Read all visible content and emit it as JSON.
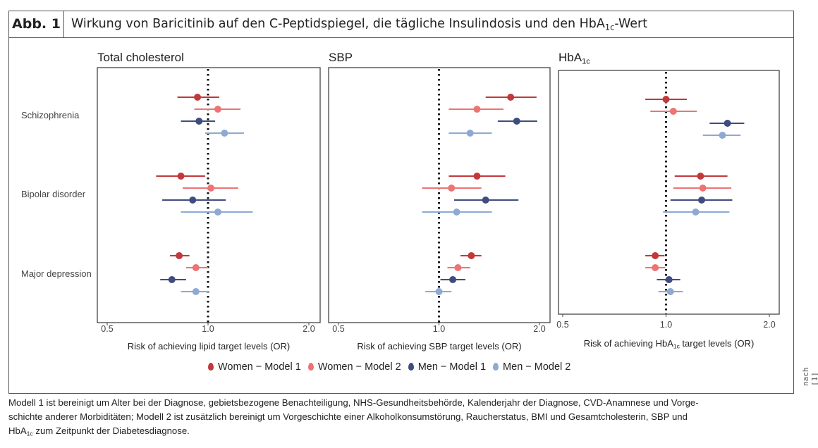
{
  "header": {
    "label": "Abb. 1",
    "title_pre": "Wirkung von Baricitinib auf den C-Peptidspiegel, die tägliche Insulindosis und den HbA",
    "title_sub": "1c",
    "title_post": "-Wert"
  },
  "row_labels": [
    "Schizophrenia",
    "Bipolar disorder",
    "Major depression"
  ],
  "legend": [
    {
      "label": "Women − Model 1",
      "color": "#c0393b"
    },
    {
      "label": "Women − Model 2",
      "color": "#ec7474"
    },
    {
      "label": "Men − Model 1",
      "color": "#3f4c7f"
    },
    {
      "label": "Men − Model 2",
      "color": "#8ea9d3"
    }
  ],
  "source_note": "nach [1]",
  "caption": {
    "line1": "Modell 1 ist bereinigt um Alter bei der Diagnose, gebietsbezogene Benachteiligung, NHS-Gesundheitsbehörde, Kalenderjahr der Diagnose, CVD-Anamnese und Vorge-",
    "line2": "schichte anderer Morbiditäten; Modell 2 ist zusätzlich bereinigt um Vorgeschichte einer Alkoholkonsumstörung, Raucherstatus, BMI und Gesamtcholesterin, SBP und",
    "line3_pre": "HbA",
    "line3_sub": "1c",
    "line3_post": " zum Zeitpunkt der Diabetesdiagnose."
  },
  "chart_data": [
    {
      "type": "forest",
      "title": "Total cholesterol",
      "title_sub": "",
      "xlabel_pre": "Risk of achieving lipid target levels (OR)",
      "xlabel_sub": "",
      "xlabel_post": "",
      "xscale": "log",
      "xlim": [
        0.5,
        2.0
      ],
      "xticks": [
        "0.5",
        "1.0",
        "2.0"
      ],
      "reference": 1.0,
      "groups": [
        {
          "name": "Schizophrenia",
          "series": [
            [
              0.93,
              0.81,
              1.08
            ],
            [
              1.07,
              0.91,
              1.25
            ],
            [
              0.94,
              0.83,
              1.05
            ],
            [
              1.12,
              0.98,
              1.28
            ]
          ]
        },
        {
          "name": "Bipolar disorder",
          "series": [
            [
              0.83,
              0.7,
              0.98
            ],
            [
              1.02,
              0.84,
              1.23
            ],
            [
              0.9,
              0.73,
              1.13
            ],
            [
              1.07,
              0.83,
              1.36
            ]
          ]
        },
        {
          "name": "Major depression",
          "series": [
            [
              0.82,
              0.77,
              0.88
            ],
            [
              0.92,
              0.86,
              1.0
            ],
            [
              0.78,
              0.72,
              0.86
            ],
            [
              0.92,
              0.83,
              1.01
            ]
          ]
        }
      ]
    },
    {
      "type": "forest",
      "title": "SBP",
      "title_sub": "",
      "xlabel_pre": "Risk of achieving SBP target levels (OR)",
      "xlabel_sub": "",
      "xlabel_post": "",
      "xscale": "log",
      "xlim": [
        0.5,
        2.0
      ],
      "xticks": [
        "0.5",
        "1.0",
        "2.0"
      ],
      "reference": 1.0,
      "groups": [
        {
          "name": "Schizophrenia",
          "series": [
            [
              1.64,
              1.38,
              1.96
            ],
            [
              1.3,
              1.07,
              1.56
            ],
            [
              1.71,
              1.5,
              1.97
            ],
            [
              1.24,
              1.07,
              1.44
            ]
          ]
        },
        {
          "name": "Bipolar disorder",
          "series": [
            [
              1.3,
              1.07,
              1.58
            ],
            [
              1.09,
              0.89,
              1.34
            ],
            [
              1.38,
              1.11,
              1.73
            ],
            [
              1.13,
              0.89,
              1.44
            ]
          ]
        },
        {
          "name": "Major depression",
          "series": [
            [
              1.25,
              1.16,
              1.34
            ],
            [
              1.14,
              1.06,
              1.24
            ],
            [
              1.1,
              1.01,
              1.2
            ],
            [
              1.0,
              0.91,
              1.09
            ]
          ]
        }
      ]
    },
    {
      "type": "forest",
      "title": "HbA",
      "title_sub": "1c",
      "xlabel_pre": "Risk of achieving HbA",
      "xlabel_sub": "1c",
      "xlabel_post": " target levels (OR)",
      "xscale": "log",
      "xlim": [
        0.5,
        2.0
      ],
      "xticks": [
        "0.5",
        "1.0",
        "2.0"
      ],
      "reference": 1.0,
      "groups": [
        {
          "name": "Schizophrenia",
          "series": [
            [
              1.0,
              0.87,
              1.15
            ],
            [
              1.05,
              0.9,
              1.23
            ],
            [
              1.51,
              1.34,
              1.69
            ],
            [
              1.46,
              1.28,
              1.65
            ]
          ]
        },
        {
          "name": "Bipolar disorder",
          "series": [
            [
              1.26,
              1.06,
              1.51
            ],
            [
              1.28,
              1.05,
              1.55
            ],
            [
              1.27,
              1.03,
              1.56
            ],
            [
              1.22,
              0.98,
              1.53
            ]
          ]
        },
        {
          "name": "Major depression",
          "series": [
            [
              0.93,
              0.87,
              0.99
            ],
            [
              0.93,
              0.87,
              0.995
            ],
            [
              1.02,
              0.94,
              1.1
            ],
            [
              1.03,
              0.95,
              1.12
            ]
          ]
        }
      ]
    }
  ]
}
